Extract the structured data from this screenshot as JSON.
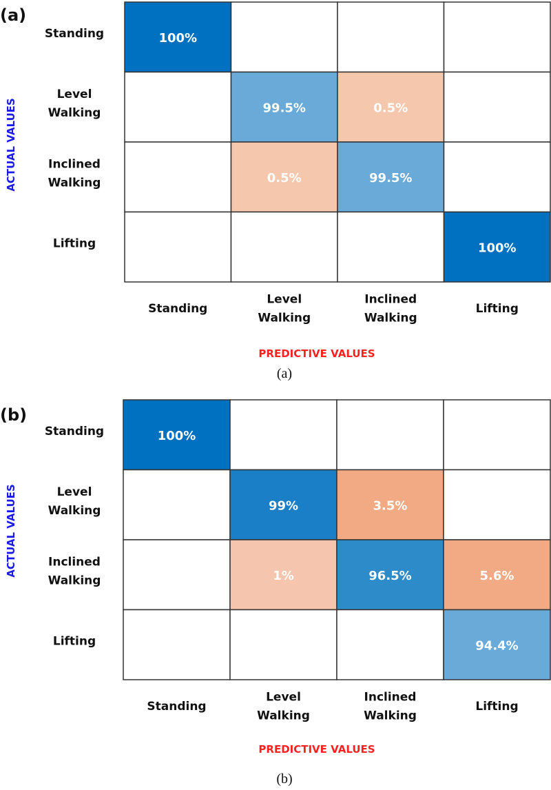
{
  "chart_data": [
    {
      "type": "heatmap",
      "panel_label": "(a)",
      "caption": "(a)",
      "xlabel": "PREDICTIVE VALUES",
      "ylabel": "ACTUAL VALUES",
      "xlabel_color": "#ff2020",
      "ylabel_color": "#1a1ae6",
      "rows": [
        "Standing",
        "Level Walking",
        "Inclined Walking",
        "Lifting"
      ],
      "columns": [
        "Standing",
        "Level Walking",
        "Inclined Walking",
        "Lifting"
      ],
      "cells": [
        [
          {
            "text": "100%",
            "color": "#0070c0"
          },
          null,
          null,
          null
        ],
        [
          null,
          {
            "text": "99.5%",
            "color": "#6aaad8"
          },
          {
            "text": "0.5%",
            "color": "#f5c8ae"
          },
          null
        ],
        [
          null,
          {
            "text": "0.5%",
            "color": "#f5c8ae"
          },
          {
            "text": "99.5%",
            "color": "#6aaad8"
          },
          null
        ],
        [
          null,
          null,
          null,
          {
            "text": "100%",
            "color": "#0070c0"
          }
        ]
      ]
    },
    {
      "type": "heatmap",
      "panel_label": "(b)",
      "caption": "(b)",
      "xlabel": "PREDICTIVE VALUES",
      "ylabel": "ACTUAL VALUES",
      "xlabel_color": "#ff2020",
      "ylabel_color": "#1a1ae6",
      "rows": [
        "Standing",
        "Level Walking",
        "Inclined Walking",
        "Lifting"
      ],
      "columns": [
        "Standing",
        "Level Walking",
        "Inclined Walking",
        "Lifting"
      ],
      "cells": [
        [
          {
            "text": "100%",
            "color": "#0070c0"
          },
          null,
          null,
          null
        ],
        [
          null,
          {
            "text": "99%",
            "color": "#1a7fc6"
          },
          {
            "text": "3.5%",
            "color": "#f2aa85"
          },
          null
        ],
        [
          null,
          {
            "text": "1%",
            "color": "#f5c6ad"
          },
          {
            "text": "96.5%",
            "color": "#2e8bca"
          },
          {
            "text": "5.6%",
            "color": "#f2aa85"
          }
        ],
        [
          null,
          null,
          null,
          {
            "text": "94.4%",
            "color": "#6aaad8"
          }
        ]
      ]
    }
  ]
}
